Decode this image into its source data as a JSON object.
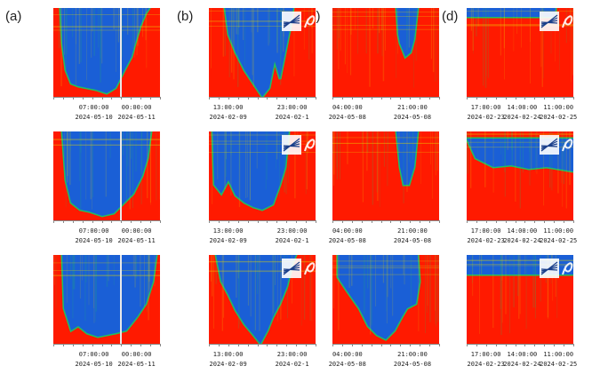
{
  "columns": [
    {
      "label": "(a)",
      "ticks": [
        {
          "time": "07:00:00",
          "date": "2024-05-10"
        },
        {
          "time": "00:00:00",
          "date": "2024-05-11"
        }
      ]
    },
    {
      "label": "(b)",
      "ticks": [
        {
          "time": "13:00:00",
          "date": "2024-02-09"
        },
        {
          "time": "23:00:00",
          "date": "2024-02-1"
        }
      ]
    },
    {
      "label": "(c)",
      "ticks": [
        {
          "time": "04:00:00",
          "date": "2024-05-08"
        },
        {
          "time": "21:00:00",
          "date": "2024-05-08"
        }
      ]
    },
    {
      "label": "(d)",
      "ticks": [
        {
          "time": "17:00:00",
          "date": "2024-02-23"
        },
        {
          "time": "14:00:00",
          "date": "2024-02-24"
        },
        {
          "time": "11:00:00",
          "date": "2024-02-25"
        }
      ]
    }
  ],
  "colors": {
    "background": "#ff1a00",
    "low": "#1a5fd6",
    "mid": "#e8d800",
    "edge": "#20c060",
    "axis": "#888888",
    "divider": "#e8e8e8"
  }
}
